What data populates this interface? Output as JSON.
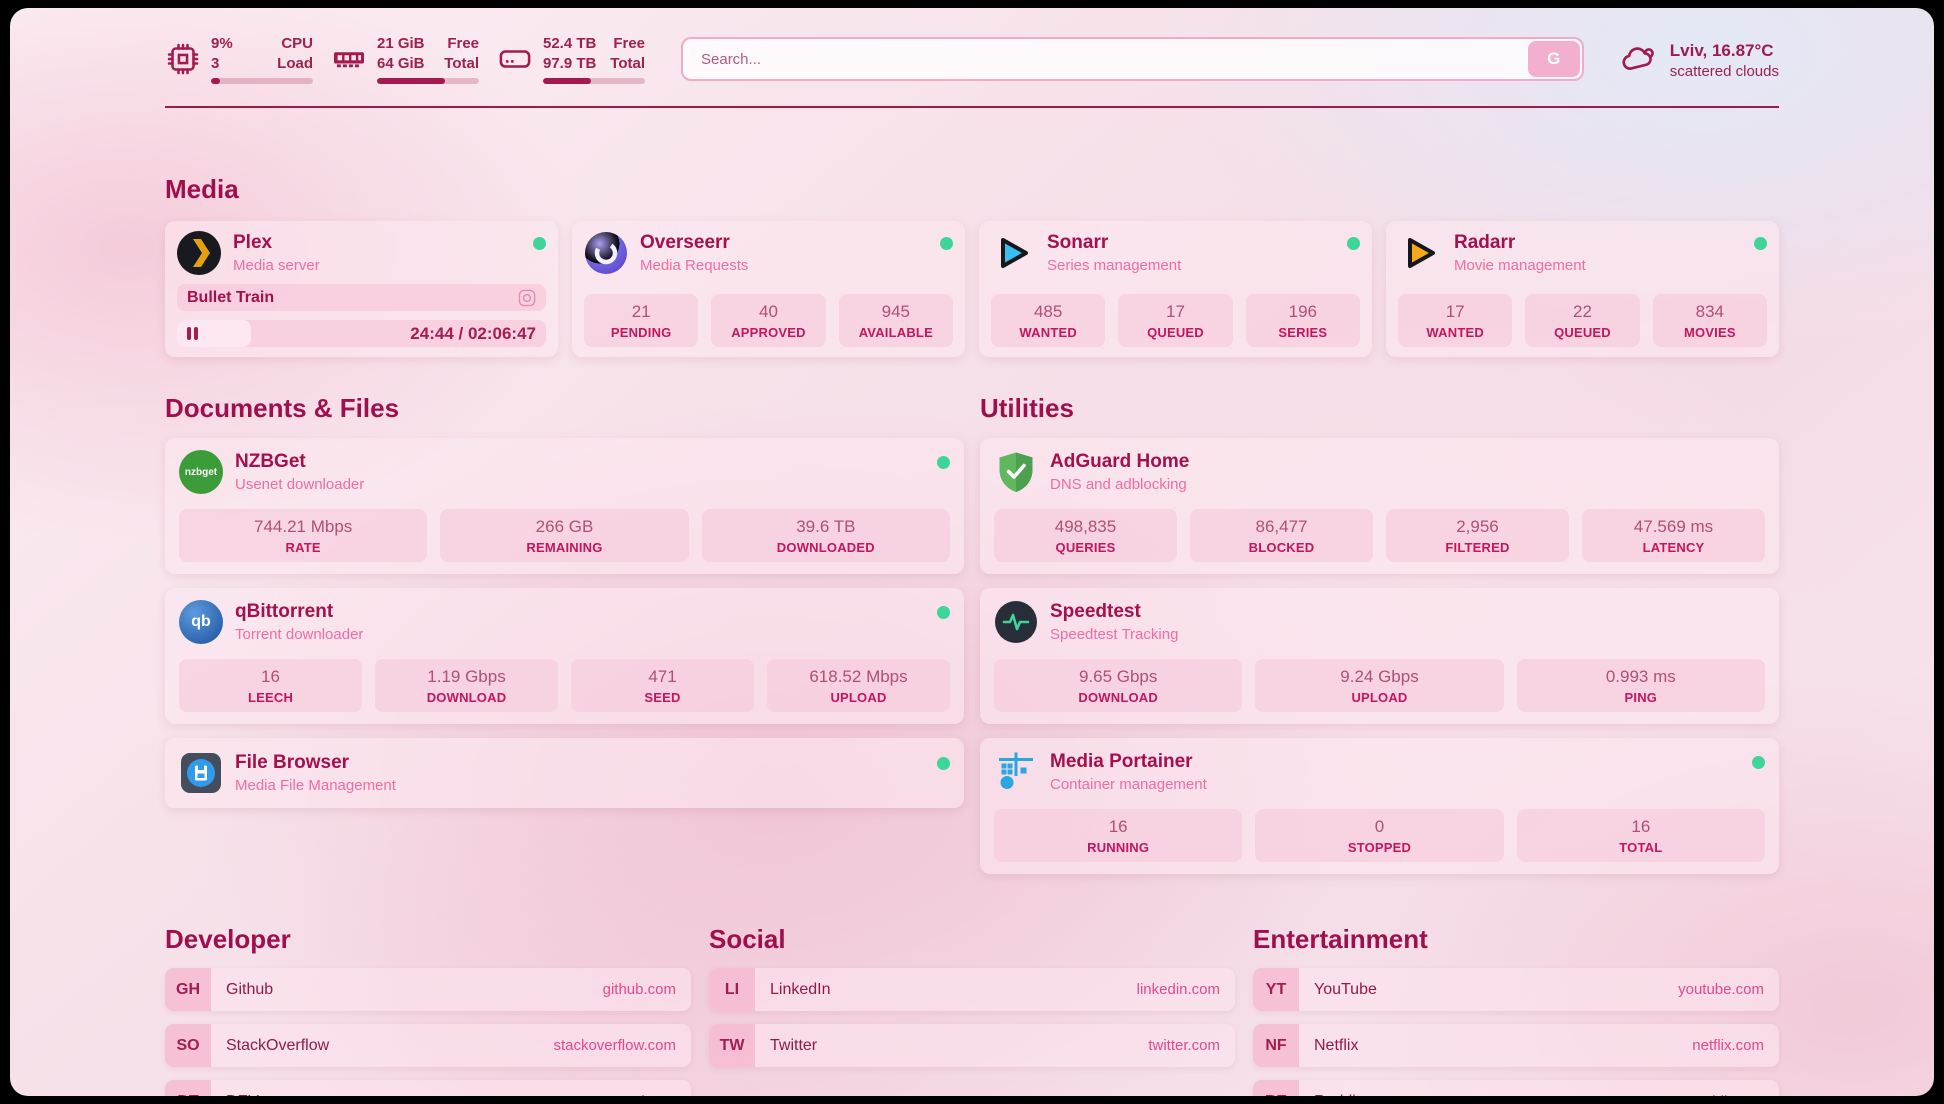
{
  "theme": {
    "accent": "#9b1b4d",
    "status_online": "#3ed598",
    "link_pink": "#e2498f"
  },
  "topbar": {
    "cpu": {
      "value_top": "9%",
      "value_bottom": "3",
      "label_top": "CPU",
      "label_bottom": "Load",
      "percent": 9
    },
    "ram": {
      "value_top": "21 GiB",
      "value_bottom": "64 GiB",
      "label_top": "Free",
      "label_bottom": "Total",
      "percent": 67
    },
    "disk": {
      "value_top": "52.4 TB",
      "value_bottom": "97.9 TB",
      "label_top": "Free",
      "label_bottom": "Total",
      "percent": 47
    },
    "search": {
      "placeholder": "Search...",
      "button_label": "G"
    },
    "weather": {
      "location_temp": "Lviv, 16.87°C",
      "condition": "scattered clouds"
    }
  },
  "sections": {
    "media": {
      "title": "Media",
      "plex": {
        "name": "Plex",
        "subtitle": "Media server",
        "now_playing": "Bullet Train",
        "time": "24:44 / 02:06:47",
        "progress_percent": 20
      },
      "cards": [
        {
          "name": "Overseerr",
          "subtitle": "Media Requests",
          "stats": [
            {
              "value": "21",
              "label": "PENDING"
            },
            {
              "value": "40",
              "label": "APPROVED"
            },
            {
              "value": "945",
              "label": "AVAILABLE"
            }
          ]
        },
        {
          "name": "Sonarr",
          "subtitle": "Series management",
          "stats": [
            {
              "value": "485",
              "label": "WANTED"
            },
            {
              "value": "17",
              "label": "QUEUED"
            },
            {
              "value": "196",
              "label": "SERIES"
            }
          ]
        },
        {
          "name": "Radarr",
          "subtitle": "Movie management",
          "stats": [
            {
              "value": "17",
              "label": "WANTED"
            },
            {
              "value": "22",
              "label": "QUEUED"
            },
            {
              "value": "834",
              "label": "MOVIES"
            }
          ]
        }
      ]
    },
    "documents": {
      "title": "Documents & Files",
      "cards": [
        {
          "name": "NZBGet",
          "subtitle": "Usenet downloader",
          "icon_text": "nzbget",
          "stats": [
            {
              "value": "744.21 Mbps",
              "label": "RATE"
            },
            {
              "value": "266 GB",
              "label": "REMAINING"
            },
            {
              "value": "39.6 TB",
              "label": "DOWNLOADED"
            }
          ]
        },
        {
          "name": "qBittorrent",
          "subtitle": "Torrent downloader",
          "icon_text": "qb",
          "stats": [
            {
              "value": "16",
              "label": "LEECH"
            },
            {
              "value": "1.19 Gbps",
              "label": "DOWNLOAD"
            },
            {
              "value": "471",
              "label": "SEED"
            },
            {
              "value": "618.52 Mbps",
              "label": "UPLOAD"
            }
          ]
        },
        {
          "name": "File Browser",
          "subtitle": "Media File Management"
        }
      ]
    },
    "utilities": {
      "title": "Utilities",
      "cards": [
        {
          "name": "AdGuard Home",
          "subtitle": "DNS and adblocking",
          "stats": [
            {
              "value": "498,835",
              "label": "QUERIES"
            },
            {
              "value": "86,477",
              "label": "BLOCKED"
            },
            {
              "value": "2,956",
              "label": "FILTERED"
            },
            {
              "value": "47.569 ms",
              "label": "LATENCY"
            }
          ]
        },
        {
          "name": "Speedtest",
          "subtitle": "Speedtest Tracking",
          "stats": [
            {
              "value": "9.65 Gbps",
              "label": "DOWNLOAD"
            },
            {
              "value": "9.24 Gbps",
              "label": "UPLOAD"
            },
            {
              "value": "0.993 ms",
              "label": "PING"
            }
          ]
        },
        {
          "name": "Media Portainer",
          "subtitle": "Container management",
          "stats": [
            {
              "value": "16",
              "label": "RUNNING"
            },
            {
              "value": "0",
              "label": "STOPPED"
            },
            {
              "value": "16",
              "label": "TOTAL"
            }
          ]
        }
      ]
    },
    "developer": {
      "title": "Developer",
      "links": [
        {
          "abbr": "GH",
          "name": "Github",
          "url": "github.com"
        },
        {
          "abbr": "SO",
          "name": "StackOverflow",
          "url": "stackoverflow.com"
        },
        {
          "abbr": "DT",
          "name": "DEV",
          "url": "dev.to"
        }
      ]
    },
    "social": {
      "title": "Social",
      "links": [
        {
          "abbr": "LI",
          "name": "LinkedIn",
          "url": "linkedin.com"
        },
        {
          "abbr": "TW",
          "name": "Twitter",
          "url": "twitter.com"
        }
      ]
    },
    "entertainment": {
      "title": "Entertainment",
      "links": [
        {
          "abbr": "YT",
          "name": "YouTube",
          "url": "youtube.com"
        },
        {
          "abbr": "NF",
          "name": "Netflix",
          "url": "netflix.com"
        },
        {
          "abbr": "RE",
          "name": "Reddit",
          "url": "reddit.com"
        }
      ]
    }
  }
}
